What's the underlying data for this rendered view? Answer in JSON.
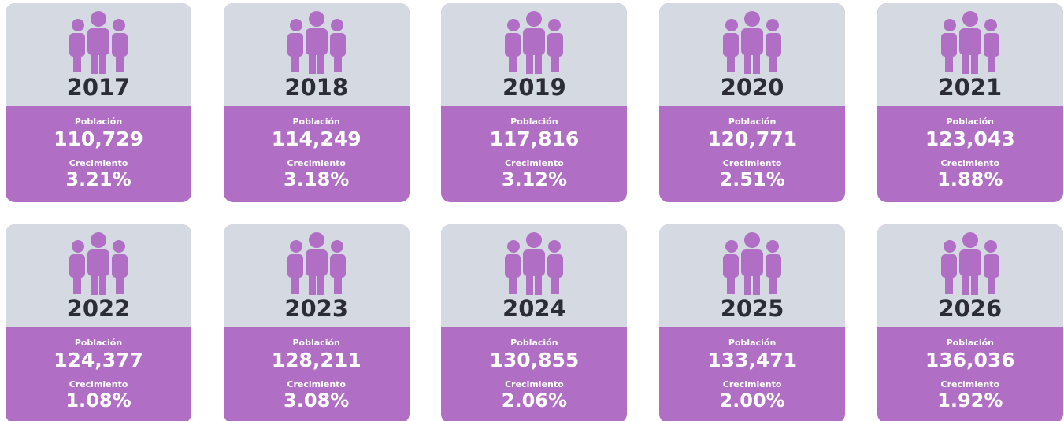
{
  "population_label": "Población",
  "growth_label": "Crecimiento",
  "cards": [
    {
      "year": "2017",
      "population": "110,729",
      "growth": "3.21%"
    },
    {
      "year": "2018",
      "population": "114,249",
      "growth": "3.18%"
    },
    {
      "year": "2019",
      "population": "117,816",
      "growth": "3.12%"
    },
    {
      "year": "2020",
      "population": "120,771",
      "growth": "2.51%"
    },
    {
      "year": "2021",
      "population": "123,043",
      "growth": "1.88%"
    },
    {
      "year": "2022",
      "population": "124,377",
      "growth": "1.08%"
    },
    {
      "year": "2023",
      "population": "128,211",
      "growth": "3.08%"
    },
    {
      "year": "2024",
      "population": "130,855",
      "growth": "2.06%"
    },
    {
      "year": "2025",
      "population": "133,471",
      "growth": "2.00%"
    },
    {
      "year": "2026",
      "population": "136,036",
      "growth": "1.92%"
    }
  ]
}
